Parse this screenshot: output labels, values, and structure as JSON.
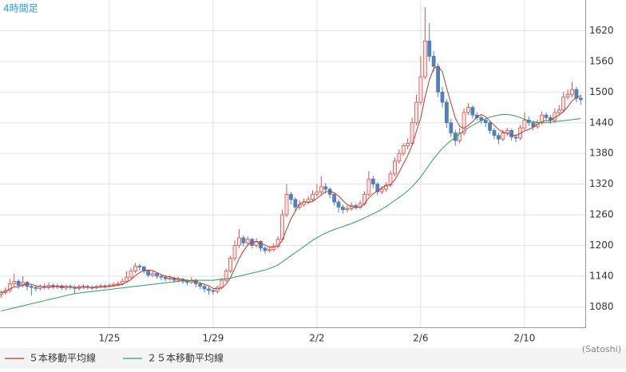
{
  "chart_data": {
    "type": "candlestick",
    "title": "4時間足",
    "credit": "(Satoshi)",
    "categories": [
      null,
      null,
      null,
      null,
      null,
      null,
      null,
      null,
      null,
      null,
      null,
      null,
      null,
      null,
      null,
      null,
      null,
      null,
      null,
      null,
      null,
      null,
      null,
      null,
      null,
      "1/25",
      null,
      null,
      null,
      null,
      null,
      null,
      null,
      null,
      null,
      null,
      null,
      null,
      null,
      null,
      null,
      null,
      null,
      null,
      null,
      null,
      null,
      null,
      null,
      "1/29",
      null,
      null,
      null,
      null,
      null,
      null,
      null,
      null,
      null,
      null,
      null,
      null,
      null,
      null,
      null,
      null,
      null,
      null,
      null,
      null,
      null,
      null,
      null,
      "2/2",
      null,
      null,
      null,
      null,
      null,
      null,
      null,
      null,
      null,
      null,
      null,
      null,
      null,
      null,
      null,
      null,
      null,
      null,
      null,
      null,
      null,
      null,
      null,
      "2/6",
      null,
      null,
      null,
      null,
      null,
      null,
      null,
      null,
      null,
      null,
      null,
      null,
      null,
      null,
      null,
      null,
      null,
      null,
      null,
      null,
      null,
      null,
      null,
      "2/10",
      null,
      null,
      null,
      null,
      null,
      null,
      null,
      null,
      null,
      null,
      null,
      null,
      null
    ],
    "open": [
      1105,
      1108,
      1112,
      1125,
      1130,
      1122,
      1128,
      1120,
      1118,
      1116,
      1120,
      1118,
      1122,
      1119,
      1121,
      1117,
      1120,
      1118,
      1116,
      1119,
      1120,
      1118,
      1117,
      1119,
      1121,
      1120,
      1122,
      1124,
      1125,
      1130,
      1138,
      1150,
      1160,
      1158,
      1150,
      1142,
      1145,
      1140,
      1138,
      1135,
      1136,
      1132,
      1134,
      1130,
      1128,
      1132,
      1125,
      1120,
      1115,
      1112,
      1110,
      1118,
      1132,
      1150,
      1175,
      1200,
      1215,
      1205,
      1212,
      1200,
      1208,
      1195,
      1190,
      1192,
      1198,
      1212,
      1260,
      1300,
      1290,
      1275,
      1280,
      1285,
      1290,
      1300,
      1305,
      1315,
      1310,
      1300,
      1285,
      1275,
      1270,
      1272,
      1278,
      1275,
      1282,
      1300,
      1330,
      1320,
      1305,
      1310,
      1318,
      1340,
      1365,
      1380,
      1395,
      1400,
      1440,
      1480,
      1530,
      1600,
      1570,
      1550,
      1500,
      1480,
      1440,
      1420,
      1405,
      1420,
      1460,
      1470,
      1455,
      1450,
      1445,
      1440,
      1425,
      1415,
      1408,
      1420,
      1425,
      1412,
      1410,
      1430,
      1445,
      1440,
      1432,
      1440,
      1455,
      1450,
      1445,
      1460,
      1465,
      1490,
      1495,
      1505,
      1488
    ],
    "high": [
      1112,
      1118,
      1135,
      1145,
      1134,
      1140,
      1131,
      1124,
      1122,
      1124,
      1126,
      1128,
      1126,
      1125,
      1124,
      1124,
      1124,
      1122,
      1123,
      1124,
      1123,
      1122,
      1123,
      1125,
      1124,
      1126,
      1128,
      1130,
      1136,
      1150,
      1156,
      1166,
      1164,
      1160,
      1152,
      1150,
      1148,
      1143,
      1142,
      1141,
      1139,
      1138,
      1137,
      1134,
      1138,
      1135,
      1128,
      1124,
      1120,
      1116,
      1122,
      1136,
      1155,
      1180,
      1210,
      1232,
      1220,
      1218,
      1215,
      1214,
      1210,
      1198,
      1198,
      1204,
      1218,
      1270,
      1320,
      1305,
      1294,
      1288,
      1292,
      1296,
      1308,
      1320,
      1336,
      1322,
      1314,
      1304,
      1290,
      1280,
      1278,
      1284,
      1282,
      1288,
      1306,
      1345,
      1336,
      1324,
      1316,
      1324,
      1346,
      1372,
      1388,
      1400,
      1410,
      1450,
      1495,
      1570,
      1666,
      1635,
      1580,
      1556,
      1510,
      1486,
      1448,
      1426,
      1430,
      1468,
      1478,
      1474,
      1460,
      1454,
      1448,
      1444,
      1430,
      1420,
      1426,
      1430,
      1428,
      1418,
      1436,
      1460,
      1452,
      1444,
      1446,
      1462,
      1460,
      1455,
      1468,
      1475,
      1500,
      1505,
      1520,
      1510,
      1495
    ],
    "low": [
      1098,
      1104,
      1108,
      1120,
      1115,
      1118,
      1112,
      1102,
      1110,
      1112,
      1114,
      1114,
      1115,
      1115,
      1113,
      1112,
      1114,
      1106,
      1112,
      1115,
      1114,
      1113,
      1114,
      1116,
      1116,
      1117,
      1119,
      1120,
      1122,
      1127,
      1135,
      1146,
      1150,
      1145,
      1138,
      1138,
      1135,
      1132,
      1130,
      1131,
      1127,
      1128,
      1125,
      1122,
      1124,
      1118,
      1114,
      1108,
      1104,
      1104,
      1106,
      1114,
      1128,
      1146,
      1170,
      1195,
      1198,
      1200,
      1194,
      1196,
      1188,
      1184,
      1186,
      1188,
      1194,
      1208,
      1255,
      1280,
      1268,
      1270,
      1276,
      1280,
      1286,
      1295,
      1300,
      1302,
      1292,
      1278,
      1264,
      1262,
      1265,
      1268,
      1270,
      1271,
      1278,
      1296,
      1312,
      1298,
      1300,
      1305,
      1314,
      1335,
      1360,
      1375,
      1388,
      1396,
      1435,
      1475,
      1525,
      1560,
      1540,
      1490,
      1470,
      1430,
      1412,
      1395,
      1400,
      1415,
      1455,
      1448,
      1444,
      1438,
      1432,
      1418,
      1408,
      1398,
      1404,
      1414,
      1405,
      1402,
      1406,
      1425,
      1434,
      1425,
      1428,
      1436,
      1444,
      1438,
      1440,
      1455,
      1460,
      1485,
      1490,
      1480,
      1475
    ],
    "close": [
      1108,
      1112,
      1125,
      1130,
      1122,
      1128,
      1120,
      1118,
      1116,
      1120,
      1118,
      1122,
      1119,
      1121,
      1117,
      1120,
      1118,
      1116,
      1119,
      1120,
      1118,
      1117,
      1119,
      1121,
      1120,
      1122,
      1124,
      1125,
      1130,
      1138,
      1150,
      1160,
      1158,
      1150,
      1142,
      1145,
      1140,
      1138,
      1135,
      1136,
      1132,
      1134,
      1130,
      1128,
      1132,
      1125,
      1120,
      1115,
      1112,
      1110,
      1118,
      1132,
      1150,
      1175,
      1200,
      1215,
      1205,
      1212,
      1200,
      1208,
      1195,
      1190,
      1192,
      1198,
      1212,
      1260,
      1300,
      1290,
      1275,
      1280,
      1285,
      1290,
      1300,
      1305,
      1315,
      1310,
      1300,
      1285,
      1275,
      1270,
      1272,
      1278,
      1275,
      1282,
      1300,
      1330,
      1320,
      1305,
      1310,
      1318,
      1340,
      1365,
      1380,
      1395,
      1400,
      1440,
      1480,
      1530,
      1600,
      1570,
      1550,
      1500,
      1480,
      1440,
      1420,
      1405,
      1420,
      1460,
      1470,
      1455,
      1450,
      1445,
      1440,
      1425,
      1415,
      1408,
      1420,
      1425,
      1412,
      1410,
      1430,
      1445,
      1440,
      1432,
      1440,
      1455,
      1450,
      1445,
      1460,
      1465,
      1490,
      1495,
      1505,
      1488,
      1485
    ],
    "up_color": "#d9534f",
    "down_color": "#4f81bd",
    "series": [
      {
        "name": "５本移動平均線",
        "color": "#c0392b",
        "values": [
          1108,
          1110,
          1115,
          1119,
          1119,
          1123,
          1125,
          1124,
          1121,
          1120,
          1118,
          1119,
          1119,
          1120,
          1119,
          1120,
          1119,
          1118,
          1118,
          1119,
          1118,
          1118,
          1119,
          1119,
          1119,
          1120,
          1121,
          1122,
          1124,
          1128,
          1133,
          1141,
          1147,
          1151,
          1152,
          1151,
          1147,
          1143,
          1140,
          1139,
          1136,
          1135,
          1133,
          1132,
          1131,
          1130,
          1127,
          1124,
          1121,
          1116,
          1115,
          1117,
          1124,
          1137,
          1155,
          1174,
          1189,
          1201,
          1206,
          1208,
          1204,
          1201,
          1197,
          1197,
          1199,
          1210,
          1232,
          1252,
          1267,
          1281,
          1286,
          1284,
          1286,
          1292,
          1299,
          1305,
          1306,
          1303,
          1297,
          1288,
          1280,
          1276,
          1274,
          1275,
          1281,
          1293,
          1301,
          1307,
          1313,
          1317,
          1319,
          1328,
          1343,
          1360,
          1376,
          1396,
          1423,
          1449,
          1490,
          1524,
          1546,
          1550,
          1540,
          1508,
          1478,
          1449,
          1433,
          1429,
          1435,
          1442,
          1451,
          1456,
          1452,
          1443,
          1435,
          1427,
          1422,
          1419,
          1416,
          1415,
          1419,
          1424,
          1427,
          1431,
          1437,
          1442,
          1444,
          1444,
          1450,
          1455,
          1462,
          1471,
          1483,
          1489,
          1493
        ]
      },
      {
        "name": "２５本移動平均線",
        "color": "#2e9e5b",
        "values": [
          1072,
          1074,
          1076,
          1078,
          1080,
          1082,
          1084,
          1086,
          1088,
          1090,
          1092,
          1094,
          1096,
          1098,
          1100,
          1102,
          1104,
          1106,
          1107,
          1108,
          1109,
          1110,
          1111,
          1112,
          1113,
          1114,
          1115,
          1116,
          1117,
          1118,
          1119,
          1120,
          1121,
          1122,
          1123,
          1124,
          1125,
          1126,
          1127,
          1128,
          1129,
          1130,
          1131,
          1131,
          1132,
          1132,
          1132,
          1132,
          1132,
          1132,
          1133,
          1134,
          1135,
          1136,
          1138,
          1140,
          1142,
          1144,
          1146,
          1148,
          1150,
          1152,
          1155,
          1158,
          1162,
          1168,
          1174,
          1180,
          1186,
          1192,
          1198,
          1204,
          1210,
          1215,
          1220,
          1224,
          1228,
          1231,
          1234,
          1237,
          1240,
          1243,
          1246,
          1250,
          1254,
          1258,
          1262,
          1266,
          1271,
          1276,
          1282,
          1288,
          1294,
          1300,
          1307,
          1315,
          1324,
          1334,
          1346,
          1358,
          1370,
          1380,
          1390,
          1398,
          1405,
          1412,
          1418,
          1424,
          1430,
          1435,
          1440,
          1444,
          1448,
          1451,
          1453,
          1455,
          1456,
          1456,
          1455,
          1453,
          1450,
          1447,
          1444,
          1442,
          1441,
          1440,
          1440,
          1441,
          1442,
          1443,
          1444,
          1445,
          1446,
          1447,
          1448
        ]
      }
    ],
    "ylim": [
      1040,
      1680
    ],
    "yticks": [
      1080,
      1140,
      1200,
      1260,
      1320,
      1380,
      1440,
      1500,
      1560,
      1620
    ],
    "grid": true
  }
}
